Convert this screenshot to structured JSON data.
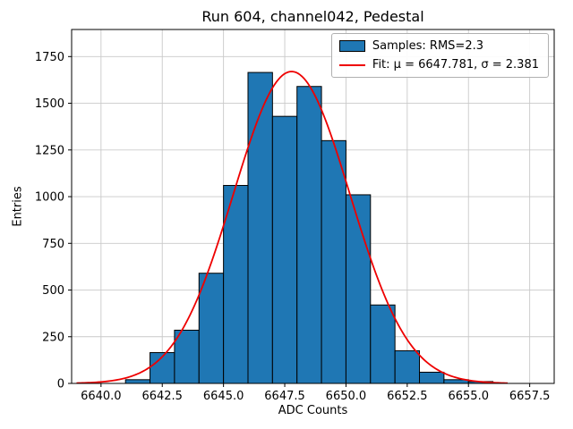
{
  "title": "Run 604, channel042, Pedestal",
  "chart_data": {
    "type": "bar",
    "subtype": "histogram",
    "title": "Run 604, channel042, Pedestal",
    "xlabel": "ADC Counts",
    "ylabel": "Entries",
    "xlim": [
      6638.8,
      6658.5
    ],
    "ylim": [
      0,
      1895
    ],
    "grid": true,
    "grid_color": "#c9c9c9",
    "x_ticks": [
      6640.0,
      6642.5,
      6645.0,
      6647.5,
      6650.0,
      6652.5,
      6655.0,
      6657.5
    ],
    "x_tick_labels": [
      "6640.0",
      "6642.5",
      "6645.0",
      "6647.5",
      "6650.0",
      "6652.5",
      "6655.0",
      "6657.5"
    ],
    "y_ticks": [
      0,
      250,
      500,
      750,
      1000,
      1250,
      1500,
      1750
    ],
    "y_tick_labels": [
      "0",
      "250",
      "500",
      "750",
      "1000",
      "1250",
      "1500",
      "1750"
    ],
    "bin_width": 1,
    "bin_starts": [
      6641,
      6642,
      6643,
      6644,
      6645,
      6646,
      6647,
      6648,
      6649,
      6650,
      6651,
      6652,
      6653,
      6654,
      6655
    ],
    "values": [
      20,
      165,
      285,
      590,
      1060,
      1665,
      1430,
      1590,
      1300,
      1010,
      420,
      175,
      60,
      20,
      10
    ],
    "bar_color": "#1f77b4",
    "bar_edge_color": "#000000",
    "fit": {
      "mu": 6647.781,
      "sigma": 2.381,
      "amplitude": 1670,
      "color": "#ee0000",
      "x_range": [
        6639.0,
        6656.6
      ]
    },
    "legend": {
      "position": "upper right",
      "entries": [
        {
          "type": "patch",
          "label": "Samples: RMS=2.3",
          "color": "#1f77b4"
        },
        {
          "type": "line",
          "label": "Fit: μ = 6647.781, σ = 2.381",
          "color": "#ee0000"
        }
      ]
    }
  }
}
